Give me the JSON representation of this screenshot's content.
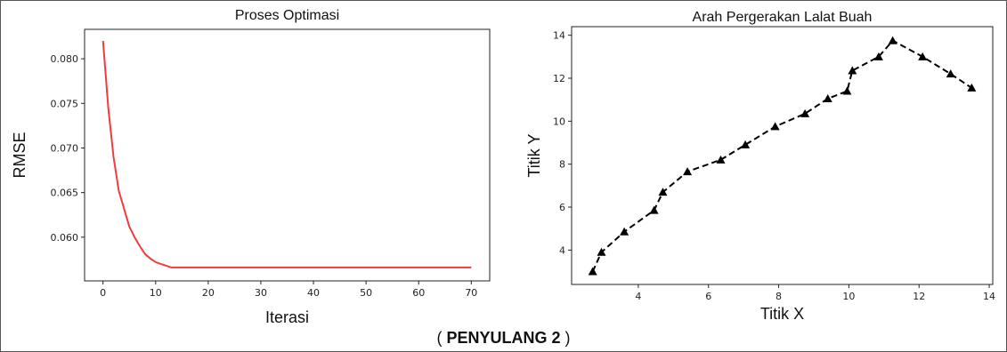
{
  "caption": {
    "open": "( ",
    "label": "PENYULANG 2",
    "close": " )"
  },
  "chart_data": [
    {
      "type": "line",
      "title": "Proses Optimasi",
      "xlabel": "Iterasi",
      "ylabel": "RMSE",
      "xlim": [
        -3.5,
        73.5
      ],
      "ylim": [
        0.0551,
        0.0833
      ],
      "xticks": [
        0,
        10,
        20,
        30,
        40,
        50,
        60,
        70
      ],
      "yticks": [
        0.06,
        0.065,
        0.07,
        0.075,
        0.08
      ],
      "ytick_labels": [
        "0.060",
        "0.065",
        "0.070",
        "0.075",
        "0.080"
      ],
      "grid": false,
      "color": "#f03c3c",
      "series": [
        {
          "x": [
            0,
            1,
            2,
            3,
            4,
            5,
            6,
            7,
            8,
            9,
            10,
            11,
            12,
            13,
            14,
            20,
            30,
            40,
            50,
            60,
            70
          ],
          "y": [
            0.082,
            0.0745,
            0.069,
            0.0652,
            0.0632,
            0.0612,
            0.06,
            0.059,
            0.0581,
            0.0576,
            0.0572,
            0.057,
            0.0568,
            0.0566,
            0.0566,
            0.0566,
            0.0566,
            0.0566,
            0.0566,
            0.0566,
            0.0566
          ]
        }
      ]
    },
    {
      "type": "line",
      "title": "Arah Pergerakan Lalat Buah",
      "xlabel": "Titik X",
      "ylabel": "Titik Y",
      "xlim": [
        2.1,
        14.1
      ],
      "ylim": [
        2.4,
        14.4
      ],
      "xticks": [
        4,
        6,
        8,
        10,
        12,
        14
      ],
      "yticks": [
        4,
        6,
        8,
        10,
        12,
        14
      ],
      "grid": false,
      "color": "#000000",
      "line_style": "dashed",
      "marker": "triangle",
      "series": [
        {
          "x": [
            2.7,
            2.95,
            3.6,
            4.45,
            4.7,
            5.4,
            6.35,
            7.05,
            7.9,
            8.75,
            9.4,
            9.95,
            10.1,
            10.85,
            11.25,
            12.1,
            12.9,
            13.5
          ],
          "y": [
            3.0,
            3.9,
            4.85,
            5.85,
            6.7,
            7.65,
            8.2,
            8.9,
            9.75,
            10.35,
            11.05,
            11.4,
            12.35,
            13.0,
            13.75,
            13.0,
            12.2,
            11.55
          ]
        }
      ]
    }
  ]
}
